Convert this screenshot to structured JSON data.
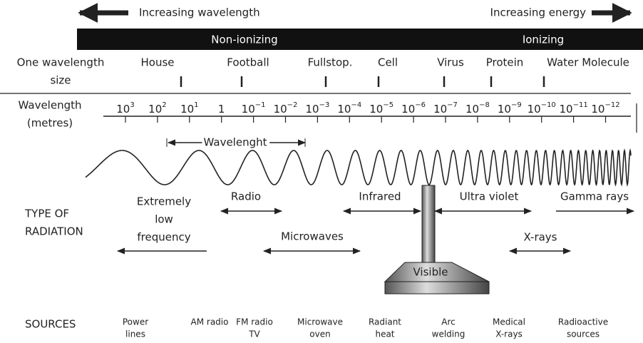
{
  "header": {
    "left_arrow": "Increasing wavelength",
    "right_arrow": "Increasing energy"
  },
  "band": {
    "left": "Non-ionizing",
    "right": "Ionizing"
  },
  "size_row": {
    "label": [
      "One wavelength",
      "size"
    ],
    "objects": [
      "House",
      "Football",
      "Fullstop.",
      "Cell",
      "Virus",
      "Protein",
      "Water Molecule"
    ]
  },
  "wavelength_row": {
    "label": [
      "Wavelength",
      "(metres)"
    ],
    "ticks": [
      {
        "base": "10",
        "exponent": "3"
      },
      {
        "base": "10",
        "exponent": "2"
      },
      {
        "base": "10",
        "exponent": "1"
      },
      {
        "base": "1"
      },
      {
        "base": "10",
        "exponent": "−1"
      },
      {
        "base": "10",
        "exponent": "−2"
      },
      {
        "base": "10",
        "exponent": "−3"
      },
      {
        "base": "10",
        "exponent": "−4"
      },
      {
        "base": "10",
        "exponent": "−5"
      },
      {
        "base": "10",
        "exponent": "−6"
      },
      {
        "base": "10",
        "exponent": "−7"
      },
      {
        "base": "10",
        "exponent": "−8"
      },
      {
        "base": "10",
        "exponent": "−9"
      },
      {
        "base": "10",
        "exponent": "−10"
      },
      {
        "base": "10",
        "exponent": "−11"
      },
      {
        "base": "10",
        "exponent": "−12"
      }
    ]
  },
  "wave": {
    "label": "Wavelenght"
  },
  "radiation": {
    "label": [
      "TYPE OF",
      "RADIATION"
    ],
    "types": [
      [
        "Extremely",
        "low",
        "frequency"
      ],
      [
        "Radio"
      ],
      [
        "Microwaves"
      ],
      [
        "Infrared"
      ],
      [
        "Visible"
      ],
      [
        "Ultra violet"
      ],
      [
        "X-rays"
      ],
      [
        "Gamma rays"
      ]
    ]
  },
  "sources": {
    "label": "SOURCES",
    "items": [
      [
        "Power",
        "lines"
      ],
      [
        "AM radio"
      ],
      [
        "FM radio",
        "TV"
      ],
      [
        "Microwave",
        "oven"
      ],
      [
        "Radiant",
        "heat"
      ],
      [
        "Arc",
        "welding"
      ],
      [
        "Medical",
        "X-rays"
      ],
      [
        "Radioactive",
        "sources"
      ]
    ]
  }
}
